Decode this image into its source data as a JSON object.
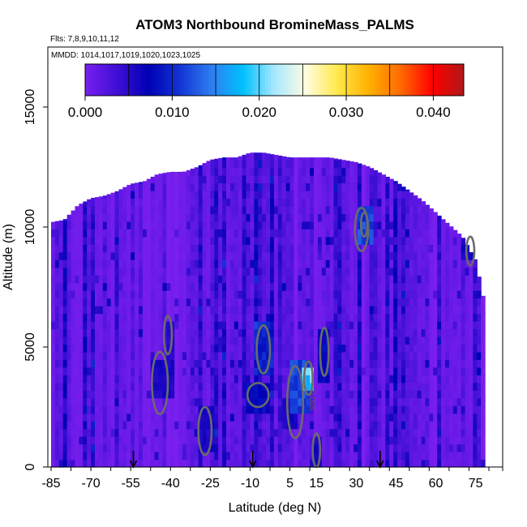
{
  "chart_data": {
    "type": "heatmap",
    "title": "ATOM3 Northbound BromineMass_PALMS",
    "flights_note": "Flts: 7,8,9,10,11,12",
    "dates_note": "MMDD: 1014,1017,1019,1020,1023,1025",
    "xlabel": "Latitude (deg N)",
    "ylabel": "Altitude (m)",
    "xlim": [
      -85,
      80
    ],
    "ylim": [
      0,
      17500
    ],
    "x_ticks": [
      -85,
      -70,
      -55,
      -40,
      -25,
      -10,
      5,
      15,
      30,
      45,
      60,
      75
    ],
    "y_ticks": [
      0,
      5000,
      10000,
      15000
    ],
    "colorbar": {
      "range": [
        0,
        0.0435
      ],
      "tick_values": [
        0.0,
        0.01,
        0.02,
        0.03,
        0.04
      ],
      "tick_labels": [
        "0.000",
        "0.010",
        "0.020",
        "0.030",
        "0.040"
      ],
      "colors": [
        "#7a1fee",
        "#3f0fd6",
        "#0000b4",
        "#1234d4",
        "#2e7df0",
        "#00c0ff",
        "#a8e8ff",
        "#fffde0",
        "#ffe94a",
        "#ffb000",
        "#ff6a00",
        "#ff0000",
        "#b01818"
      ]
    },
    "profile_markers_latitude": [
      -54,
      -9,
      39
    ],
    "contour_label": "0.005",
    "envelope": [
      [
        -85,
        0,
        10200
      ],
      [
        -80,
        0,
        10300
      ],
      [
        -75,
        0,
        10900
      ],
      [
        -70,
        0,
        11200
      ],
      [
        -65,
        0,
        11300
      ],
      [
        -60,
        0,
        11500
      ],
      [
        -55,
        0,
        11800
      ],
      [
        -50,
        0,
        11900
      ],
      [
        -45,
        0,
        12200
      ],
      [
        -40,
        0,
        12300
      ],
      [
        -35,
        0,
        12300
      ],
      [
        -30,
        0,
        12500
      ],
      [
        -25,
        0,
        12800
      ],
      [
        -20,
        0,
        12900
      ],
      [
        -15,
        0,
        12900
      ],
      [
        -10,
        0,
        13100
      ],
      [
        -5,
        0,
        13100
      ],
      [
        0,
        0,
        13000
      ],
      [
        5,
        0,
        12900
      ],
      [
        10,
        0,
        12900
      ],
      [
        15,
        0,
        12900
      ],
      [
        20,
        0,
        12900
      ],
      [
        25,
        0,
        12800
      ],
      [
        30,
        0,
        12700
      ],
      [
        35,
        0,
        12500
      ],
      [
        40,
        0,
        12200
      ],
      [
        45,
        0,
        11900
      ],
      [
        50,
        0,
        11500
      ],
      [
        55,
        0,
        11100
      ],
      [
        60,
        0,
        10600
      ],
      [
        65,
        0,
        10100
      ],
      [
        70,
        0,
        9600
      ],
      [
        75,
        0,
        8600
      ],
      [
        78,
        0,
        7000
      ]
    ],
    "enhanced_regions": [
      {
        "lat": [
          -48,
          -38
        ],
        "alt": [
          2800,
          4600
        ],
        "value": 0.006
      },
      {
        "lat": [
          -42,
          -38
        ],
        "alt": [
          4500,
          6200
        ],
        "value": 0.005
      },
      {
        "lat": [
          -30,
          -24
        ],
        "alt": [
          500,
          2500
        ],
        "value": 0.006
      },
      {
        "lat": [
          -12,
          -3
        ],
        "alt": [
          2300,
          3500
        ],
        "value": 0.008
      },
      {
        "lat": [
          -8,
          -1
        ],
        "alt": [
          3800,
          6000
        ],
        "value": 0.01
      },
      {
        "lat": [
          2,
          8
        ],
        "alt": [
          1500,
          3000
        ],
        "value": 0.006
      },
      {
        "lat": [
          5,
          13
        ],
        "alt": [
          2200,
          4600
        ],
        "value": 0.012
      },
      {
        "lat": [
          10,
          14
        ],
        "alt": [
          3200,
          4300
        ],
        "value": 0.02
      },
      {
        "lat": [
          16,
          20
        ],
        "alt": [
          3400,
          5700
        ],
        "value": 0.008
      },
      {
        "lat": [
          14,
          17
        ],
        "alt": [
          100,
          1200
        ],
        "value": 0.006
      },
      {
        "lat": [
          30,
          36
        ],
        "alt": [
          9200,
          11000
        ],
        "value": 0.012
      },
      {
        "lat": [
          45,
          52
        ],
        "alt": [
          11500,
          12800
        ],
        "value": 0.006
      },
      {
        "lat": [
          70,
          75
        ],
        "alt": [
          8500,
          9700
        ],
        "value": 0.006
      }
    ],
    "contours": [
      {
        "center": [
          -44,
          3500
        ],
        "radius": [
          3,
          1300
        ]
      },
      {
        "center": [
          -41,
          5500
        ],
        "radius": [
          1.5,
          800
        ]
      },
      {
        "center": [
          -27,
          1500
        ],
        "radius": [
          2.5,
          1000
        ]
      },
      {
        "center": [
          -7,
          3000
        ],
        "radius": [
          4,
          500
        ]
      },
      {
        "center": [
          -5,
          4900
        ],
        "radius": [
          2.5,
          1000
        ]
      },
      {
        "center": [
          7,
          2700
        ],
        "radius": [
          3,
          1500
        ]
      },
      {
        "center": [
          12,
          3700
        ],
        "radius": [
          1.6,
          700
        ]
      },
      {
        "center": [
          18,
          4800
        ],
        "radius": [
          1.6,
          1000
        ]
      },
      {
        "center": [
          15,
          700
        ],
        "radius": [
          1.4,
          700
        ]
      },
      {
        "center": [
          32,
          9900
        ],
        "radius": [
          2.5,
          900
        ]
      },
      {
        "center": [
          33,
          10100
        ],
        "radius": [
          1.2,
          500
        ]
      },
      {
        "center": [
          73,
          9000
        ],
        "radius": [
          1.5,
          600
        ]
      }
    ]
  }
}
